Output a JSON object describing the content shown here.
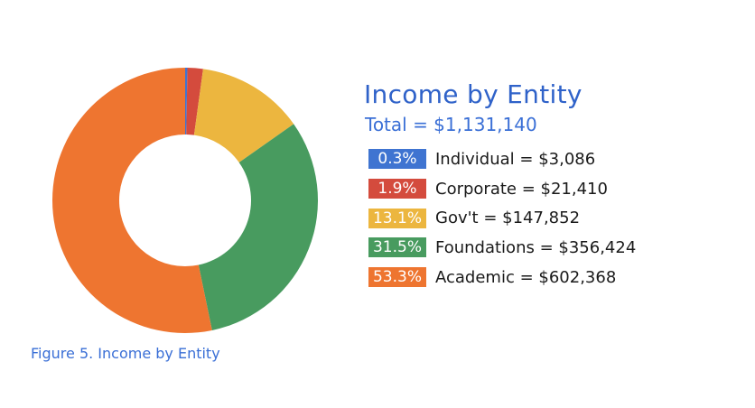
{
  "chart_data": {
    "type": "pie",
    "donut": true,
    "title": "Income by Entity",
    "subtitle": "Total = $1,131,140",
    "caption": "Figure 5. Income by Entity",
    "slices": [
      {
        "name": "Individual",
        "value": 3086,
        "percent_label": "0.3%",
        "label": "Individual = $3,086",
        "color": "#3f74d1"
      },
      {
        "name": "Corporate",
        "value": 21410,
        "percent_label": "1.9%",
        "label": "Corporate = $21,410",
        "color": "#d44b3d"
      },
      {
        "name": "Gov't",
        "value": 147852,
        "percent_label": "13.1%",
        "label": "Gov't = $147,852",
        "color": "#ecb63f"
      },
      {
        "name": "Foundations",
        "value": 356424,
        "percent_label": "31.5%",
        "label": "Foundations = $356,424",
        "color": "#489b5f"
      },
      {
        "name": "Academic",
        "value": 602368,
        "percent_label": "53.3%",
        "label": "Academic = $602,368",
        "color": "#ee7530"
      }
    ],
    "legend_placement": "right"
  }
}
